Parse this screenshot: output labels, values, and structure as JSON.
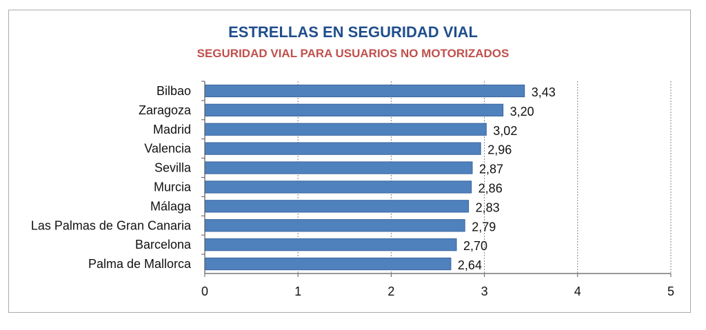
{
  "chart_data": {
    "type": "bar",
    "orientation": "horizontal",
    "title": "ESTRELLAS EN SEGURIDAD VIAL",
    "subtitle": "SEGURIDAD VIAL PARA USUARIOS NO MOTORIZADOS",
    "categories": [
      "Bilbao",
      "Zaragoza",
      "Madrid",
      "Valencia",
      "Sevilla",
      "Murcia",
      "Málaga",
      "Las Palmas de Gran Canaria",
      "Barcelona",
      "Palma de Mallorca"
    ],
    "values": [
      3.43,
      3.2,
      3.02,
      2.96,
      2.87,
      2.86,
      2.83,
      2.79,
      2.7,
      2.64
    ],
    "value_labels": [
      "3,43",
      "3,20",
      "3,02",
      "2,96",
      "2,87",
      "2,86",
      "2,83",
      "2,79",
      "2,70",
      "2,64"
    ],
    "xlim": [
      0,
      5
    ],
    "xticks": [
      "0",
      "1",
      "2",
      "3",
      "4",
      "5"
    ],
    "grid": "vertical-dashed",
    "legend": "none",
    "bar_color": "#4f81bd",
    "bar_edge_color": "#3a64a0",
    "grid_color": "#7f7f7f",
    "title_color": "#1f4e8c",
    "subtitle_color": "#c0504d"
  }
}
